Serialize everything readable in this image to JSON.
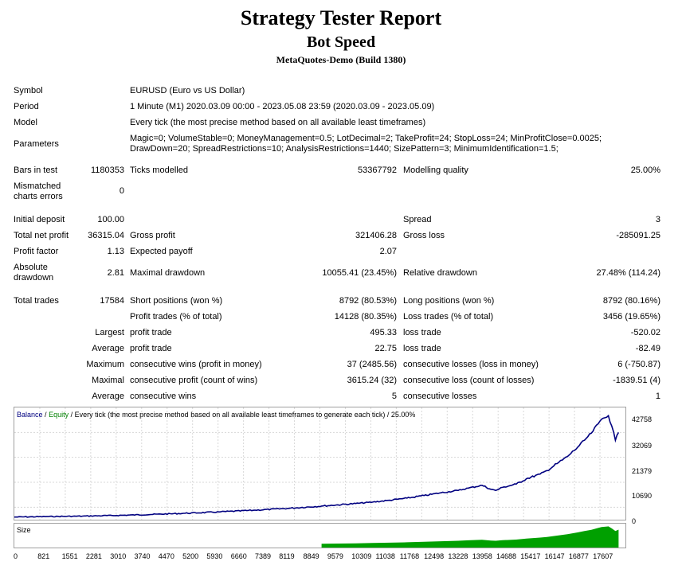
{
  "header": {
    "title": "Strategy Tester Report",
    "subtitle": "Bot Speed",
    "server": "MetaQuotes-Demo (Build 1380)"
  },
  "settings": {
    "symbol_label": "Symbol",
    "symbol_value": "EURUSD (Euro vs US Dollar)",
    "period_label": "Period",
    "period_value": "1 Minute (M1) 2020.03.09 00:00 - 2023.05.08 23:59 (2020.03.09 - 2023.05.09)",
    "model_label": "Model",
    "model_value": "Every tick (the most precise method based on all available least timeframes)",
    "parameters_label": "Parameters",
    "parameters_line1": "Magic=0; VolumeStable=0; MoneyManagement=0.5; LotDecimal=2; TakeProfit=24; StopLoss=24; MinProfitClose=0.0025;",
    "parameters_line2": "DrawDown=20; SpreadRestrictions=10; AnalysisRestrictions=1440; SizePattern=3; MinimumIdentification=1.5;"
  },
  "test_stats": {
    "bars_label": "Bars in test",
    "bars_value": "1180353",
    "ticks_label": "Ticks modelled",
    "ticks_value": "53367792",
    "quality_label": "Modelling quality",
    "quality_value": "25.00%",
    "mismatched_label_1": "Mismatched",
    "mismatched_label_2": "charts errors",
    "mismatched_value": "0"
  },
  "results": {
    "initial_deposit_label": "Initial deposit",
    "initial_deposit_value": "100.00",
    "spread_label": "Spread",
    "spread_value": "3",
    "net_profit_label": "Total net profit",
    "net_profit_value": "36315.04",
    "gross_profit_label": "Gross profit",
    "gross_profit_value": "321406.28",
    "gross_loss_label": "Gross loss",
    "gross_loss_value": "-285091.25",
    "profit_factor_label": "Profit factor",
    "profit_factor_value": "1.13",
    "expected_payoff_label": "Expected payoff",
    "expected_payoff_value": "2.07",
    "abs_drawdown_label_1": "Absolute",
    "abs_drawdown_label_2": "drawdown",
    "abs_drawdown_value": "2.81",
    "max_drawdown_label": "Maximal drawdown",
    "max_drawdown_value": "10055.41 (23.45%)",
    "rel_drawdown_label": "Relative drawdown",
    "rel_drawdown_value": "27.48% (114.24)"
  },
  "trades": {
    "total_trades_label": "Total trades",
    "total_trades_value": "17584",
    "short_label": "Short positions (won %)",
    "short_value": "8792 (80.53%)",
    "long_label": "Long positions (won %)",
    "long_value": "8792 (80.16%)",
    "profit_trades_label": "Profit trades (% of total)",
    "profit_trades_value": "14128 (80.35%)",
    "loss_trades_label": "Loss trades (% of total)",
    "loss_trades_value": "3456 (19.65%)",
    "largest_label": "Largest",
    "largest_profit_label": "profit trade",
    "largest_profit_value": "495.33",
    "largest_loss_label": "loss trade",
    "largest_loss_value": "-520.02",
    "average_label": "Average",
    "average_profit_label": "profit trade",
    "average_profit_value": "22.75",
    "average_loss_label": "loss trade",
    "average_loss_value": "-82.49",
    "maximum_label": "Maximum",
    "max_cons_wins_label": "consecutive wins (profit in money)",
    "max_cons_wins_value": "37 (2485.56)",
    "max_cons_losses_label": "consecutive losses (loss in money)",
    "max_cons_losses_value": "6 (-750.87)",
    "maximal_label": "Maximal",
    "maximal_cons_profit_label": "consecutive profit (count of wins)",
    "maximal_cons_profit_value": "3615.24 (32)",
    "maximal_cons_loss_label": "consecutive loss (count of losses)",
    "maximal_cons_loss_value": "-1839.51 (4)",
    "average2_label": "Average",
    "avg_cons_wins_label": "consecutive wins",
    "avg_cons_wins_value": "5",
    "avg_cons_losses_label": "consecutive losses",
    "avg_cons_losses_value": "1"
  },
  "chart_data": {
    "type": "line",
    "title": "Every tick (the most precise method based on all available least timeframes to generate each tick) / 25.00%",
    "legend_balance": "Balance",
    "legend_sep": "/",
    "legend_equity": "Equity",
    "series": [
      {
        "name": "Balance",
        "color": "#000080",
        "x": [
          0,
          1000,
          2000,
          3000,
          4000,
          5000,
          6000,
          7000,
          8000,
          9000,
          10000,
          10500,
          11000,
          11500,
          12000,
          12500,
          13000,
          13300,
          13700,
          13958,
          14100,
          14300,
          14700,
          15000,
          15400,
          15600,
          15900,
          16200,
          16500,
          16700,
          16900,
          17100,
          17200,
          17400,
          17500,
          17607,
          17700
        ],
        "y": [
          100,
          300,
          500,
          800,
          1200,
          1700,
          2300,
          3000,
          3800,
          4800,
          5900,
          6500,
          7300,
          8200,
          9300,
          10500,
          11500,
          12500,
          13700,
          12000,
          11500,
          12800,
          14200,
          16500,
          18500,
          20000,
          23000,
          26000,
          30000,
          33000,
          36000,
          40000,
          42000,
          43500,
          39000,
          33000,
          36315
        ]
      }
    ],
    "y_ticks": [
      "42758",
      "32069",
      "21379",
      "10690",
      "0"
    ],
    "ylim": [
      0,
      46000
    ],
    "x_ticks": [
      "0",
      "821",
      "1551",
      "2281",
      "3010",
      "3740",
      "4470",
      "5200",
      "5930",
      "6660",
      "7389",
      "8119",
      "8849",
      "9579",
      "10309",
      "11038",
      "11768",
      "12498",
      "13228",
      "13958",
      "14688",
      "15417",
      "16147",
      "16877",
      "17607"
    ],
    "xlim": [
      0,
      17900
    ],
    "size_label": "Size",
    "size_color": "#00a000",
    "grid": true
  }
}
